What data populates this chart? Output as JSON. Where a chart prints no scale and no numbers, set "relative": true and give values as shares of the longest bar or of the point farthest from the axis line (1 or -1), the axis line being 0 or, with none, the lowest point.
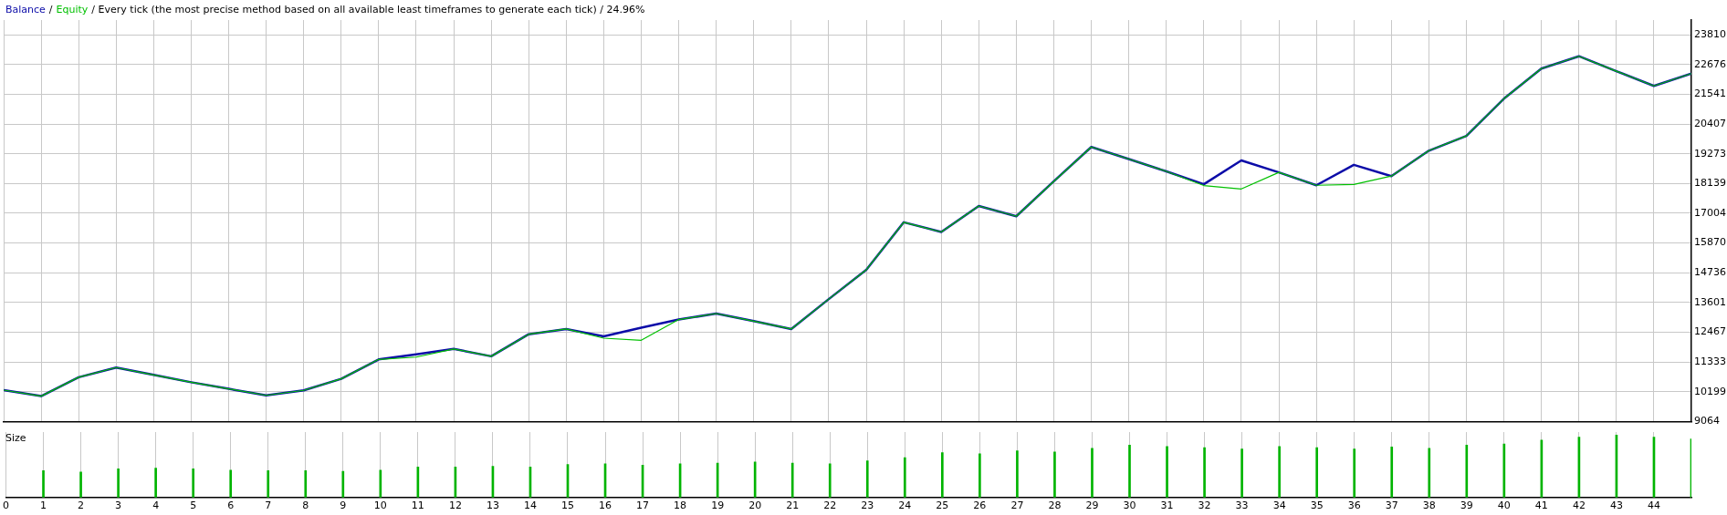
{
  "chart_data": [
    {
      "type": "line",
      "annotations": [
        "/"
      ],
      "title": "/ Every tick (the most precise method based on all available least timeframes to generate each tick) / 24.96%",
      "legend": "top left",
      "grid": true,
      "tick_labels": "y",
      "x": [
        0,
        1,
        2,
        3,
        4,
        5,
        6,
        7,
        8,
        9,
        10,
        11,
        12,
        13,
        14,
        15,
        16,
        17,
        18,
        19,
        20,
        21,
        22,
        23,
        24,
        25,
        26,
        27,
        28,
        29,
        30,
        31,
        32,
        33,
        34,
        35,
        36,
        37,
        38,
        39,
        40,
        41,
        42,
        43,
        44,
        45
      ],
      "xlim": [
        0,
        45
      ],
      "xticks": [
        0,
        1,
        2,
        3,
        4,
        5,
        6,
        7,
        8,
        9,
        10,
        11,
        12,
        13,
        14,
        15,
        16,
        17,
        18,
        19,
        20,
        21,
        22,
        23,
        24,
        25,
        26,
        27,
        28,
        29,
        30,
        31,
        32,
        33,
        34,
        35,
        36,
        37,
        38,
        39,
        40,
        41,
        42,
        43,
        44
      ],
      "ylim": [
        9064,
        24370
      ],
      "yticks": [
        9064,
        10199,
        11333,
        12467,
        13601,
        14736,
        15870,
        17004,
        18139,
        19273,
        20407,
        21541,
        22676,
        23810
      ],
      "series": [
        {
          "name": "Balance",
          "color": "#0c0ca8",
          "values": [
            10260,
            10030,
            10750,
            11120,
            10840,
            10560,
            10310,
            10060,
            10250,
            10690,
            11430,
            11620,
            11830,
            11550,
            12390,
            12590,
            12310,
            12640,
            12950,
            13180,
            12890,
            12590,
            13730,
            14850,
            16660,
            16290,
            17280,
            16890,
            18220,
            19530,
            19070,
            18600,
            18110,
            19020,
            18560,
            18070,
            18850,
            18420,
            19390,
            19950,
            21370,
            22520,
            22990,
            22420,
            21860,
            22330
          ]
        },
        {
          "name": "Equity",
          "color": "#00c000",
          "values": [
            10260,
            10030,
            10750,
            11120,
            10840,
            10560,
            10310,
            10060,
            10250,
            10690,
            11430,
            11520,
            11830,
            11550,
            12390,
            12590,
            12240,
            12160,
            12950,
            13180,
            12890,
            12590,
            13730,
            14850,
            16660,
            16290,
            17280,
            16890,
            18220,
            19530,
            19070,
            18600,
            18060,
            17930,
            18560,
            18070,
            18100,
            18420,
            19390,
            19950,
            21370,
            22520,
            22990,
            22420,
            21860,
            22330
          ]
        }
      ]
    },
    {
      "type": "bar",
      "title": "Size",
      "relative": true,
      "grid": "x",
      "color": "#00b400",
      "x": [
        1,
        2,
        3,
        4,
        5,
        6,
        7,
        8,
        9,
        10,
        11,
        12,
        13,
        14,
        15,
        16,
        17,
        18,
        19,
        20,
        21,
        22,
        23,
        24,
        25,
        26,
        27,
        28,
        29,
        30,
        31,
        32,
        33,
        34,
        35,
        36,
        37,
        38,
        39,
        40,
        41,
        42,
        43,
        44,
        45
      ],
      "xlim": [
        0,
        45
      ],
      "xticks": [
        0,
        1,
        2,
        3,
        4,
        5,
        6,
        7,
        8,
        9,
        10,
        11,
        12,
        13,
        14,
        15,
        16,
        17,
        18,
        19,
        20,
        21,
        22,
        23,
        24,
        25,
        26,
        27,
        28,
        29,
        30,
        31,
        32,
        33,
        34,
        35,
        36,
        37,
        38,
        39,
        40,
        41,
        42,
        43,
        44
      ],
      "values": [
        0.43,
        0.41,
        0.46,
        0.47,
        0.46,
        0.44,
        0.43,
        0.43,
        0.42,
        0.44,
        0.49,
        0.49,
        0.5,
        0.49,
        0.53,
        0.54,
        0.52,
        0.54,
        0.55,
        0.57,
        0.55,
        0.54,
        0.59,
        0.64,
        0.72,
        0.7,
        0.75,
        0.73,
        0.79,
        0.84,
        0.82,
        0.8,
        0.78,
        0.82,
        0.8,
        0.78,
        0.81,
        0.79,
        0.84,
        0.86,
        0.92,
        0.97,
        1,
        0.97,
        0.94
      ]
    }
  ]
}
